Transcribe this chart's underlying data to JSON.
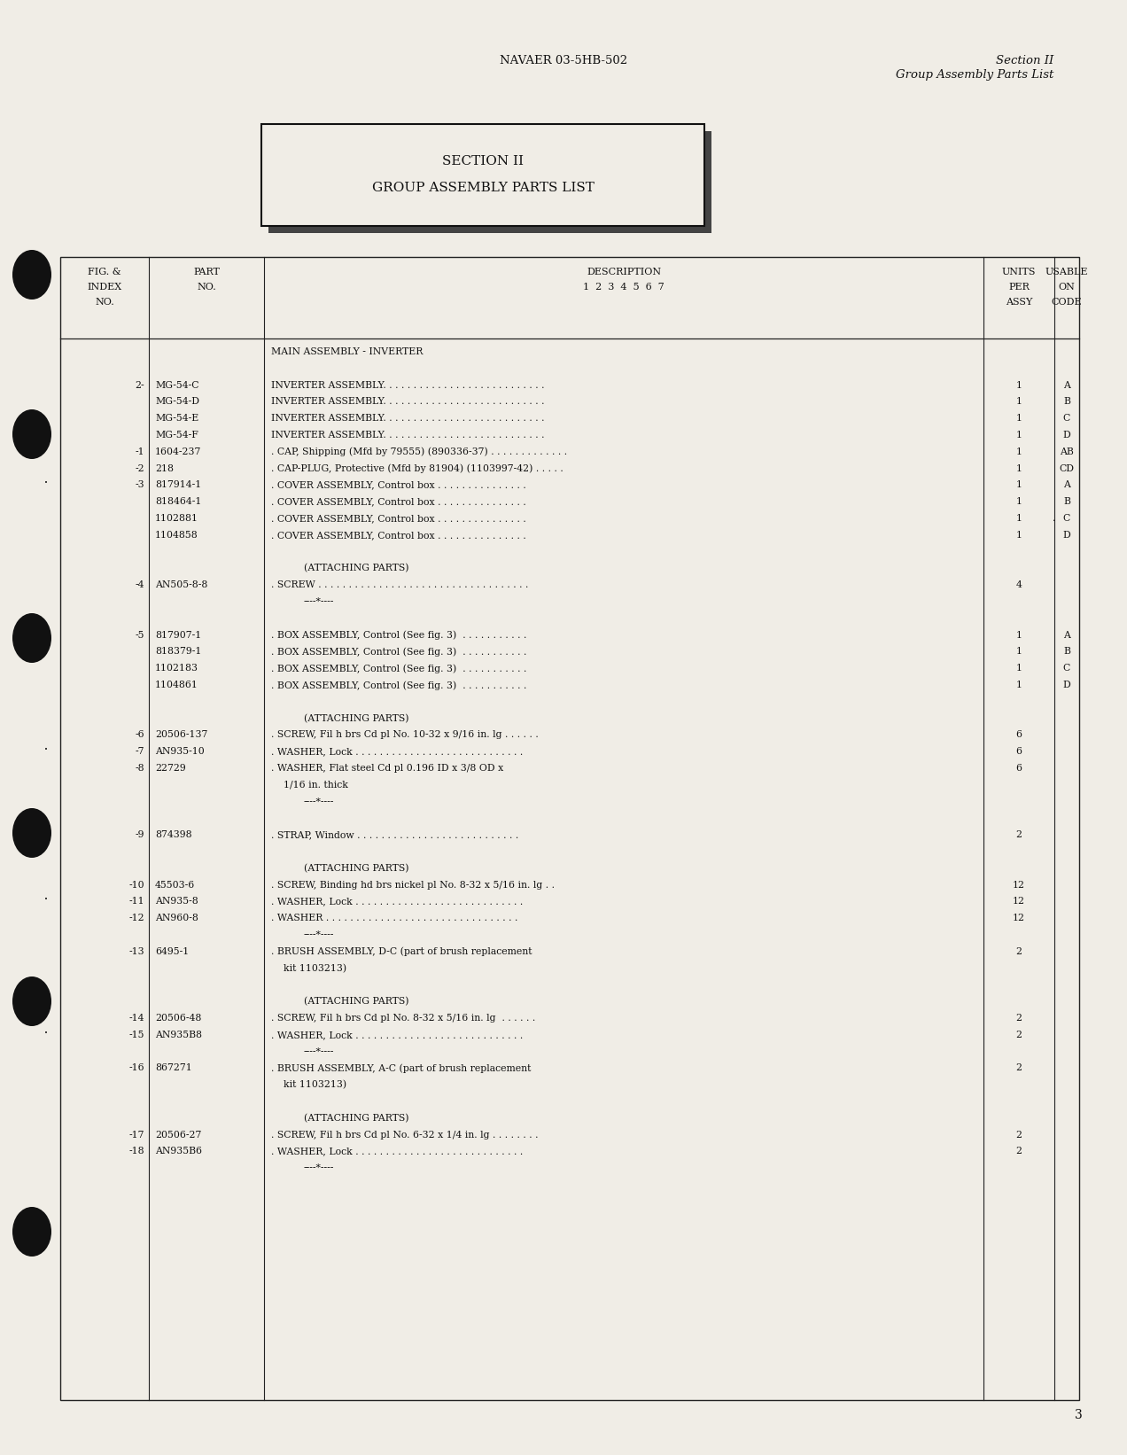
{
  "page_bg": "#f0ede6",
  "header_left": "NAVAER 03-5HB-502",
  "header_right_line1": "Section II",
  "header_right_line2": "Group Assembly Parts List",
  "section_box_line1": "SECTION II",
  "section_box_line2": "GROUP ASSEMBLY PARTS LIST",
  "rows": [
    {
      "fig": "",
      "part": "",
      "desc": "MAIN ASSEMBLY - INVERTER",
      "units": "",
      "code": "",
      "indent": 0,
      "style": "normal"
    },
    {
      "fig": "",
      "part": "",
      "desc": "",
      "units": "",
      "code": "",
      "indent": 0,
      "style": "normal"
    },
    {
      "fig": "2-",
      "part": "MG-54-C",
      "desc": "INVERTER ASSEMBLY. . . . . . . . . . . . . . . . . . . . . . . . . . .",
      "units": "1",
      "code": "A",
      "indent": 0,
      "style": "normal"
    },
    {
      "fig": "",
      "part": "MG-54-D",
      "desc": "INVERTER ASSEMBLY. . . . . . . . . . . . . . . . . . . . . . . . . . .",
      "units": "1",
      "code": "B",
      "indent": 0,
      "style": "normal"
    },
    {
      "fig": "",
      "part": "MG-54-E",
      "desc": "INVERTER ASSEMBLY. . . . . . . . . . . . . . . . . . . . . . . . . . .",
      "units": "1",
      "code": "C",
      "indent": 0,
      "style": "normal"
    },
    {
      "fig": "",
      "part": "MG-54-F",
      "desc": "INVERTER ASSEMBLY. . . . . . . . . . . . . . . . . . . . . . . . . . .",
      "units": "1",
      "code": "D",
      "indent": 0,
      "style": "normal"
    },
    {
      "fig": "-1",
      "part": "1604-237",
      "desc": ". CAP, Shipping (Mfd by 79555) (890336-37) . . . . . . . . . . . . .",
      "units": "1",
      "code": "AB",
      "indent": 0,
      "style": "normal"
    },
    {
      "fig": "-2",
      "part": "218",
      "desc": ". CAP-PLUG, Protective (Mfd by 81904) (1103997-42) . . . . .",
      "units": "1",
      "code": "CD",
      "indent": 0,
      "style": "normal"
    },
    {
      "fig": "-3",
      "part": "817914-1",
      "desc": ". COVER ASSEMBLY, Control box . . . . . . . . . . . . . . .",
      "units": "1",
      "code": "A",
      "indent": 0,
      "style": "normal"
    },
    {
      "fig": "",
      "part": "818464-1",
      "desc": ". COVER ASSEMBLY, Control box . . . . . . . . . . . . . . .",
      "units": "1",
      "code": "B",
      "indent": 0,
      "style": "normal"
    },
    {
      "fig": "",
      "part": "1102881",
      "desc": ". COVER ASSEMBLY, Control box . . . . . . . . . . . . . . .",
      "units": "1",
      "code": "C",
      "indent": 0,
      "style": "normal",
      "dot_before_code": true
    },
    {
      "fig": "",
      "part": "1104858",
      "desc": ". COVER ASSEMBLY, Control box . . . . . . . . . . . . . . .",
      "units": "1",
      "code": "D",
      "indent": 0,
      "style": "normal"
    },
    {
      "fig": "",
      "part": "",
      "desc": "",
      "units": "",
      "code": "",
      "indent": 0,
      "style": "normal"
    },
    {
      "fig": "",
      "part": "",
      "desc": "(ATTACHING PARTS)",
      "units": "",
      "code": "",
      "indent": 1,
      "style": "center"
    },
    {
      "fig": "-4",
      "part": "AN505-8-8",
      "desc": ". SCREW . . . . . . . . . . . . . . . . . . . . . . . . . . . . . . . . . . .",
      "units": "4",
      "code": "",
      "indent": 0,
      "style": "normal"
    },
    {
      "fig": "",
      "part": "",
      "desc": "----*----",
      "units": "",
      "code": "",
      "indent": 1,
      "style": "center"
    },
    {
      "fig": "",
      "part": "",
      "desc": "",
      "units": "",
      "code": "",
      "indent": 0,
      "style": "normal"
    },
    {
      "fig": "-5",
      "part": "817907-1",
      "desc": ". BOX ASSEMBLY, Control (See fig. 3)  . . . . . . . . . . .",
      "units": "1",
      "code": "A",
      "indent": 0,
      "style": "normal"
    },
    {
      "fig": "",
      "part": "818379-1",
      "desc": ". BOX ASSEMBLY, Control (See fig. 3)  . . . . . . . . . . .",
      "units": "1",
      "code": "B",
      "indent": 0,
      "style": "normal"
    },
    {
      "fig": "",
      "part": "1102183",
      "desc": ". BOX ASSEMBLY, Control (See fig. 3)  . . . . . . . . . . .",
      "units": "1",
      "code": "C",
      "indent": 0,
      "style": "normal"
    },
    {
      "fig": "",
      "part": "1104861",
      "desc": ". BOX ASSEMBLY, Control (See fig. 3)  . . . . . . . . . . .",
      "units": "1",
      "code": "D",
      "indent": 0,
      "style": "normal"
    },
    {
      "fig": "",
      "part": "",
      "desc": "",
      "units": "",
      "code": "",
      "indent": 0,
      "style": "normal"
    },
    {
      "fig": "",
      "part": "",
      "desc": "(ATTACHING PARTS)",
      "units": "",
      "code": "",
      "indent": 1,
      "style": "center"
    },
    {
      "fig": "-6",
      "part": "20506-137",
      "desc": ". SCREW, Fil h brs Cd pl No. 10-32 x 9/16 in. lg . . . . . .",
      "units": "6",
      "code": "",
      "indent": 0,
      "style": "normal"
    },
    {
      "fig": "-7",
      "part": "AN935-10",
      "desc": ". WASHER, Lock . . . . . . . . . . . . . . . . . . . . . . . . . . . .",
      "units": "6",
      "code": "",
      "indent": 0,
      "style": "normal"
    },
    {
      "fig": "-8",
      "part": "22729",
      "desc": ". WASHER, Flat steel Cd pl 0.196 ID x 3/8 OD x",
      "units": "6",
      "code": "",
      "indent": 0,
      "style": "normal"
    },
    {
      "fig": "",
      "part": "",
      "desc": "    1/16 in. thick",
      "units": "",
      "code": "",
      "indent": 0,
      "style": "normal"
    },
    {
      "fig": "",
      "part": "",
      "desc": "----*----",
      "units": "",
      "code": "",
      "indent": 1,
      "style": "center"
    },
    {
      "fig": "",
      "part": "",
      "desc": "",
      "units": "",
      "code": "",
      "indent": 0,
      "style": "normal"
    },
    {
      "fig": "-9",
      "part": "874398",
      "desc": ". STRAP, Window . . . . . . . . . . . . . . . . . . . . . . . . . . .",
      "units": "2",
      "code": "",
      "indent": 0,
      "style": "normal"
    },
    {
      "fig": "",
      "part": "",
      "desc": "",
      "units": "",
      "code": "",
      "indent": 0,
      "style": "normal"
    },
    {
      "fig": "",
      "part": "",
      "desc": "(ATTACHING PARTS)",
      "units": "",
      "code": "",
      "indent": 1,
      "style": "center"
    },
    {
      "fig": "-10",
      "part": "45503-6",
      "desc": ". SCREW, Binding hd brs nickel pl No. 8-32 x 5/16 in. lg . .",
      "units": "12",
      "code": "",
      "indent": 0,
      "style": "normal"
    },
    {
      "fig": "-11",
      "part": "AN935-8",
      "desc": ". WASHER, Lock . . . . . . . . . . . . . . . . . . . . . . . . . . . .",
      "units": "12",
      "code": "",
      "indent": 0,
      "style": "normal"
    },
    {
      "fig": "-12",
      "part": "AN960-8",
      "desc": ". WASHER . . . . . . . . . . . . . . . . . . . . . . . . . . . . . . . .",
      "units": "12",
      "code": "",
      "indent": 0,
      "style": "normal"
    },
    {
      "fig": "",
      "part": "",
      "desc": "----*----",
      "units": "",
      "code": "",
      "indent": 1,
      "style": "center"
    },
    {
      "fig": "-13",
      "part": "6495-1",
      "desc": ". BRUSH ASSEMBLY, D-C (part of brush replacement",
      "units": "2",
      "code": "",
      "indent": 0,
      "style": "normal"
    },
    {
      "fig": "",
      "part": "",
      "desc": "    kit 1103213)",
      "units": "",
      "code": "",
      "indent": 0,
      "style": "normal"
    },
    {
      "fig": "",
      "part": "",
      "desc": "",
      "units": "",
      "code": "",
      "indent": 0,
      "style": "normal"
    },
    {
      "fig": "",
      "part": "",
      "desc": "(ATTACHING PARTS)",
      "units": "",
      "code": "",
      "indent": 1,
      "style": "center"
    },
    {
      "fig": "-14",
      "part": "20506-48",
      "desc": ". SCREW, Fil h brs Cd pl No. 8-32 x 5/16 in. lg  . . . . . .",
      "units": "2",
      "code": "",
      "indent": 0,
      "style": "normal"
    },
    {
      "fig": "-15",
      "part": "AN935B8",
      "desc": ". WASHER, Lock . . . . . . . . . . . . . . . . . . . . . . . . . . . .",
      "units": "2",
      "code": "",
      "indent": 0,
      "style": "normal"
    },
    {
      "fig": "",
      "part": "",
      "desc": "----*----",
      "units": "",
      "code": "",
      "indent": 1,
      "style": "center"
    },
    {
      "fig": "-16",
      "part": "867271",
      "desc": ". BRUSH ASSEMBLY, A-C (part of brush replacement",
      "units": "2",
      "code": "",
      "indent": 0,
      "style": "normal"
    },
    {
      "fig": "",
      "part": "",
      "desc": "    kit 1103213)",
      "units": "",
      "code": "",
      "indent": 0,
      "style": "normal"
    },
    {
      "fig": "",
      "part": "",
      "desc": "",
      "units": "",
      "code": "",
      "indent": 0,
      "style": "normal"
    },
    {
      "fig": "",
      "part": "",
      "desc": "(ATTACHING PARTS)",
      "units": "",
      "code": "",
      "indent": 1,
      "style": "center"
    },
    {
      "fig": "-17",
      "part": "20506-27",
      "desc": ". SCREW, Fil h brs Cd pl No. 6-32 x 1/4 in. lg . . . . . . . .",
      "units": "2",
      "code": "",
      "indent": 0,
      "style": "normal"
    },
    {
      "fig": "-18",
      "part": "AN935B6",
      "desc": ". WASHER, Lock . . . . . . . . . . . . . . . . . . . . . . . . . . . .",
      "units": "2",
      "code": "",
      "indent": 0,
      "style": "normal"
    },
    {
      "fig": "",
      "part": "",
      "desc": "----*----",
      "units": "",
      "code": "",
      "indent": 1,
      "style": "center"
    }
  ],
  "page_number": "3",
  "margin_dots": [
    {
      "part": "817914-1",
      "symbol": "*"
    },
    {
      "part": "AN935-10",
      "symbol": "*"
    },
    {
      "part": "AN935-8",
      "symbol": "*"
    },
    {
      "part": "AN935B8",
      "symbol": "*"
    }
  ],
  "margin_arrows": [
    {
      "part": "874398",
      "symbol": ">"
    }
  ]
}
